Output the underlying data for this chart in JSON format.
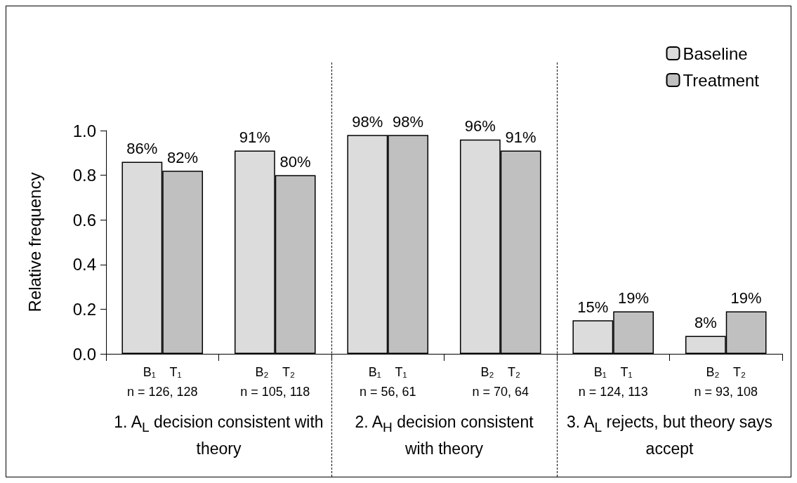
{
  "chart_data": {
    "type": "bar",
    "ylabel": "Relative frequency",
    "categories": [
      "B₁    T₁\nn = 126, 128",
      "B₂    T₂\nn = 105, 118",
      "B₁    T₁\nn = 56, 61",
      "B₂    T₂\nn = 70, 64",
      "B₁    T₁\nn = 124, 113",
      "B₂    T₂\nn = 93, 108"
    ],
    "series": [
      {
        "name": "Baseline",
        "color": "#dcdcdc",
        "values": [
          0.86,
          0.91,
          0.98,
          0.96,
          0.15,
          0.08
        ],
        "value_labels": [
          "86%",
          "91%",
          "98%",
          "96%",
          "15%",
          "8%"
        ]
      },
      {
        "name": "Treatment",
        "color": "#c0c0c0",
        "values": [
          0.82,
          0.8,
          0.98,
          0.91,
          0.19,
          0.19
        ],
        "value_labels": [
          "82%",
          "80%",
          "98%",
          "91%",
          "19%",
          "19%"
        ]
      }
    ],
    "ylim": [
      0,
      1
    ],
    "yticks": [
      {
        "value": 0,
        "label": "0.0"
      },
      0.2,
      0.4,
      0.6,
      0.8,
      {
        "value": 1,
        "label": "1.0"
      }
    ],
    "annotations": [
      "1.  A$_{L}$ decision consistent with theory",
      "2.  A$_{H}$ decision consistent with theory",
      "3.  A$_{L}$ rejects,  but theory says accept"
    ],
    "legend": "top right",
    "grid": false
  }
}
